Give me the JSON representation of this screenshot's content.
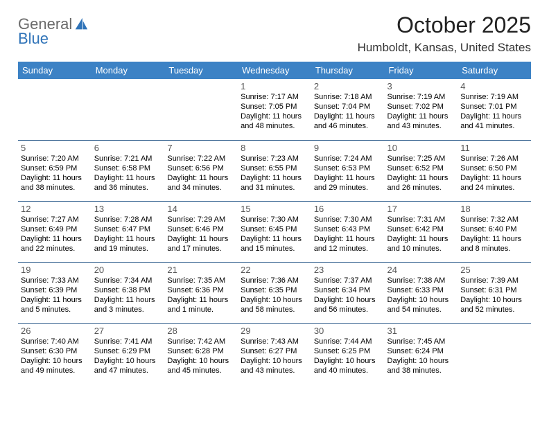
{
  "brand": {
    "word1": "General",
    "word2": "Blue",
    "word1_color": "#6a6a6a",
    "word2_color": "#2f73b8",
    "icon_color": "#2f73b8"
  },
  "title": "October 2025",
  "location": "Humboldt, Kansas, United States",
  "colors": {
    "header_bg": "#3c82c5",
    "header_fg": "#ffffff",
    "row_border": "#2a5a8a",
    "page_bg": "#ffffff"
  },
  "dow": [
    "Sunday",
    "Monday",
    "Tuesday",
    "Wednesday",
    "Thursday",
    "Friday",
    "Saturday"
  ],
  "weeks": [
    [
      null,
      null,
      null,
      {
        "n": "1",
        "sr": "7:17 AM",
        "ss": "7:05 PM",
        "dl": "11 hours and 48 minutes."
      },
      {
        "n": "2",
        "sr": "7:18 AM",
        "ss": "7:04 PM",
        "dl": "11 hours and 46 minutes."
      },
      {
        "n": "3",
        "sr": "7:19 AM",
        "ss": "7:02 PM",
        "dl": "11 hours and 43 minutes."
      },
      {
        "n": "4",
        "sr": "7:19 AM",
        "ss": "7:01 PM",
        "dl": "11 hours and 41 minutes."
      }
    ],
    [
      {
        "n": "5",
        "sr": "7:20 AM",
        "ss": "6:59 PM",
        "dl": "11 hours and 38 minutes."
      },
      {
        "n": "6",
        "sr": "7:21 AM",
        "ss": "6:58 PM",
        "dl": "11 hours and 36 minutes."
      },
      {
        "n": "7",
        "sr": "7:22 AM",
        "ss": "6:56 PM",
        "dl": "11 hours and 34 minutes."
      },
      {
        "n": "8",
        "sr": "7:23 AM",
        "ss": "6:55 PM",
        "dl": "11 hours and 31 minutes."
      },
      {
        "n": "9",
        "sr": "7:24 AM",
        "ss": "6:53 PM",
        "dl": "11 hours and 29 minutes."
      },
      {
        "n": "10",
        "sr": "7:25 AM",
        "ss": "6:52 PM",
        "dl": "11 hours and 26 minutes."
      },
      {
        "n": "11",
        "sr": "7:26 AM",
        "ss": "6:50 PM",
        "dl": "11 hours and 24 minutes."
      }
    ],
    [
      {
        "n": "12",
        "sr": "7:27 AM",
        "ss": "6:49 PM",
        "dl": "11 hours and 22 minutes."
      },
      {
        "n": "13",
        "sr": "7:28 AM",
        "ss": "6:47 PM",
        "dl": "11 hours and 19 minutes."
      },
      {
        "n": "14",
        "sr": "7:29 AM",
        "ss": "6:46 PM",
        "dl": "11 hours and 17 minutes."
      },
      {
        "n": "15",
        "sr": "7:30 AM",
        "ss": "6:45 PM",
        "dl": "11 hours and 15 minutes."
      },
      {
        "n": "16",
        "sr": "7:30 AM",
        "ss": "6:43 PM",
        "dl": "11 hours and 12 minutes."
      },
      {
        "n": "17",
        "sr": "7:31 AM",
        "ss": "6:42 PM",
        "dl": "11 hours and 10 minutes."
      },
      {
        "n": "18",
        "sr": "7:32 AM",
        "ss": "6:40 PM",
        "dl": "11 hours and 8 minutes."
      }
    ],
    [
      {
        "n": "19",
        "sr": "7:33 AM",
        "ss": "6:39 PM",
        "dl": "11 hours and 5 minutes."
      },
      {
        "n": "20",
        "sr": "7:34 AM",
        "ss": "6:38 PM",
        "dl": "11 hours and 3 minutes."
      },
      {
        "n": "21",
        "sr": "7:35 AM",
        "ss": "6:36 PM",
        "dl": "11 hours and 1 minute."
      },
      {
        "n": "22",
        "sr": "7:36 AM",
        "ss": "6:35 PM",
        "dl": "10 hours and 58 minutes."
      },
      {
        "n": "23",
        "sr": "7:37 AM",
        "ss": "6:34 PM",
        "dl": "10 hours and 56 minutes."
      },
      {
        "n": "24",
        "sr": "7:38 AM",
        "ss": "6:33 PM",
        "dl": "10 hours and 54 minutes."
      },
      {
        "n": "25",
        "sr": "7:39 AM",
        "ss": "6:31 PM",
        "dl": "10 hours and 52 minutes."
      }
    ],
    [
      {
        "n": "26",
        "sr": "7:40 AM",
        "ss": "6:30 PM",
        "dl": "10 hours and 49 minutes."
      },
      {
        "n": "27",
        "sr": "7:41 AM",
        "ss": "6:29 PM",
        "dl": "10 hours and 47 minutes."
      },
      {
        "n": "28",
        "sr": "7:42 AM",
        "ss": "6:28 PM",
        "dl": "10 hours and 45 minutes."
      },
      {
        "n": "29",
        "sr": "7:43 AM",
        "ss": "6:27 PM",
        "dl": "10 hours and 43 minutes."
      },
      {
        "n": "30",
        "sr": "7:44 AM",
        "ss": "6:25 PM",
        "dl": "10 hours and 40 minutes."
      },
      {
        "n": "31",
        "sr": "7:45 AM",
        "ss": "6:24 PM",
        "dl": "10 hours and 38 minutes."
      },
      null
    ]
  ],
  "labels": {
    "sunrise": "Sunrise:",
    "sunset": "Sunset:",
    "daylight": "Daylight:"
  }
}
